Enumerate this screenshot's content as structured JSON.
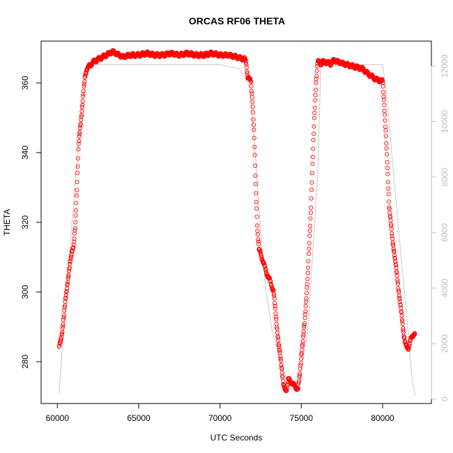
{
  "chart_data": {
    "type": "scatter",
    "title": "ORCAS RF06 THETA",
    "xlabel": "UTC Seconds",
    "ylabel": "THETA",
    "xlim": [
      59000,
      83000
    ],
    "ylim": [
      268,
      372
    ],
    "y2lim": [
      -160,
      12900
    ],
    "x_ticks": [
      60000,
      65000,
      70000,
      75000,
      80000
    ],
    "y_ticks": [
      280,
      300,
      320,
      340,
      360
    ],
    "y2_ticks": [
      0,
      2000,
      4000,
      6000,
      8000,
      10000,
      12000
    ],
    "colors": {
      "points": "#ff0000",
      "line": "#c8c8c8",
      "right_axis": "#bdbdbd"
    },
    "series": [
      {
        "marker": "circle",
        "x": [
          60100,
          60200,
          60300,
          60400,
          60500,
          60600,
          60700,
          60800,
          60900,
          61000,
          61100,
          61200,
          61300,
          61400,
          61500,
          61600,
          61700,
          61800,
          61900,
          62000,
          62200,
          62400,
          62600,
          62800,
          63000,
          63200,
          63400,
          63600,
          63800,
          64000,
          64500,
          65000,
          65500,
          66000,
          66500,
          67000,
          67500,
          68000,
          68500,
          69000,
          69500,
          70000,
          70500,
          71000,
          71300,
          71500,
          71600,
          71700,
          71800,
          71900,
          72000,
          72100,
          72200,
          72300,
          72400,
          72500,
          72700,
          72900,
          73100,
          73300,
          73500,
          73600,
          73700,
          73800,
          73900,
          74000,
          74100,
          74200,
          74400,
          74600,
          74800,
          74900,
          75000,
          75100,
          75200,
          75300,
          75400,
          75500,
          75600,
          75700,
          75800,
          75900,
          76000,
          76100,
          76200,
          76300,
          76500,
          76800,
          77000,
          77300,
          77600,
          78000,
          78400,
          78800,
          79000,
          79300,
          79600,
          80000,
          80100,
          80200,
          80300,
          80400,
          80500,
          80600,
          80700,
          80800,
          80900,
          81000,
          81100,
          81200,
          81300,
          81400,
          81500,
          81600,
          81700,
          81800,
          81900,
          82000
        ],
        "y": [
          284,
          286,
          289,
          293,
          298,
          302,
          305,
          309,
          312,
          313,
          319,
          330,
          342,
          347,
          352,
          357,
          362,
          364,
          364.5,
          365,
          366,
          366.5,
          367,
          367.5,
          368,
          368.5,
          369,
          368.5,
          368,
          367.5,
          368,
          368,
          368.5,
          368,
          368,
          368.5,
          368,
          368.5,
          368,
          368,
          368.5,
          368,
          368,
          367.5,
          367,
          367,
          366,
          362,
          361,
          360.5,
          355,
          345,
          330,
          318,
          312,
          311,
          308,
          305,
          303,
          300,
          290,
          285,
          282,
          278,
          273,
          272,
          272,
          275,
          274,
          273,
          272,
          276,
          282,
          286,
          291,
          298,
          305,
          315,
          325,
          338,
          350,
          360,
          366,
          366,
          365.5,
          366,
          366,
          365.5,
          366.5,
          366,
          365.5,
          365,
          364.5,
          364,
          363,
          362,
          361,
          360.5,
          354,
          345,
          335,
          325,
          320,
          315,
          312,
          308,
          304,
          300,
          296,
          292,
          288,
          285,
          284,
          284,
          286,
          287,
          288,
          288
        ]
      },
      {
        "type": "line",
        "x": [
          60100,
          60400,
          60800,
          61200,
          61600,
          62000,
          62400,
          64000,
          66000,
          68000,
          70000,
          71200,
          71800,
          72000,
          72200,
          72500,
          72800,
          73200,
          73600,
          74000,
          74200,
          74400,
          74800,
          75400,
          76000,
          76200,
          76600,
          76800,
          77200,
          79000,
          80000,
          80200,
          80600,
          81000,
          81400,
          81800,
          82000
        ],
        "y": [
          200,
          2600,
          5600,
          8600,
          11000,
          12050,
          12050,
          12050,
          12050,
          12050,
          12050,
          11900,
          11300,
          10000,
          8600,
          6000,
          4000,
          2500,
          1600,
          900,
          400,
          350,
          300,
          2500,
          8000,
          12000,
          12000,
          11900,
          12050,
          12050,
          12050,
          11200,
          8600,
          6000,
          3500,
          800,
          100
        ]
      }
    ]
  }
}
